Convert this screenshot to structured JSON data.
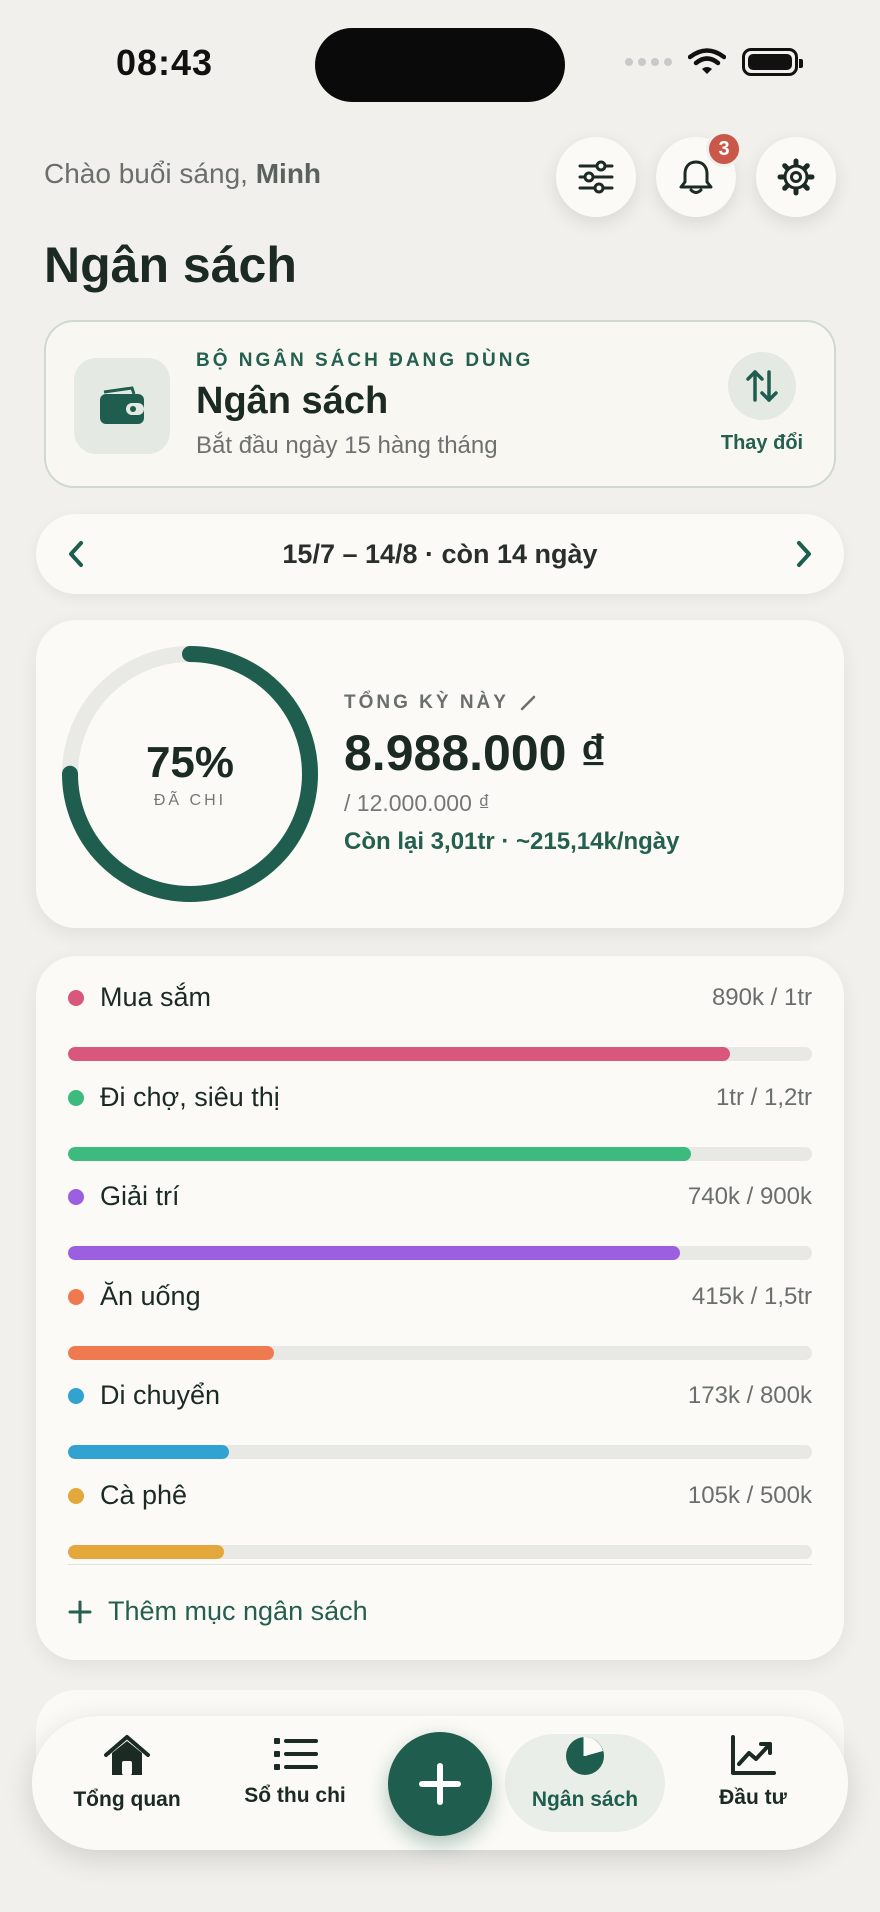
{
  "status_bar": {
    "time": "08:43"
  },
  "header": {
    "greeting_prefix": "Chào buổi sáng,",
    "greeting_name": "Minh",
    "title": "Ngân sách",
    "notification_count": "3"
  },
  "budget_set": {
    "label": "BỘ NGÂN SÁCH ĐANG DÙNG",
    "name": "Ngân sách",
    "subtitle": "Bắt đầu ngày 15 hàng tháng",
    "change_label": "Thay đổi"
  },
  "period": {
    "text": "15/7 – 14/8 · còn 14 ngày"
  },
  "summary": {
    "percent": "75%",
    "percent_label": "ĐÃ CHI",
    "spent_fraction": 0.75,
    "label": "TỔNG KỲ NÀY",
    "value": "8.988.000 ₫",
    "total": "/ 12.000.000 ₫",
    "remaining": "Còn lại 3,01tr · ~215,14k/ngày"
  },
  "categories": [
    {
      "name": "Mua sắm",
      "amount": "890k / 1tr",
      "progress": 0.89,
      "color": "#d9577b"
    },
    {
      "name": "Đi chợ, siêu thị",
      "amount": "1tr / 1,2tr",
      "progress": 0.837,
      "color": "#3dba7e"
    },
    {
      "name": "Giải trí",
      "amount": "740k / 900k",
      "progress": 0.822,
      "color": "#9b5fe0"
    },
    {
      "name": "Ăn uống",
      "amount": "415k / 1,5tr",
      "progress": 0.277,
      "color": "#f07a4f"
    },
    {
      "name": "Di chuyển",
      "amount": "173k / 800k",
      "progress": 0.216,
      "color": "#32a3d0"
    },
    {
      "name": "Cà phê",
      "amount": "105k / 500k",
      "progress": 0.21,
      "color": "#e3a73c"
    }
  ],
  "add_category_label": "Thêm mục ngân sách",
  "tabbar": {
    "items": [
      {
        "label": "Tổng quan",
        "icon": "home-icon"
      },
      {
        "label": "Sổ thu chi",
        "icon": "list-icon"
      },
      {
        "label": "Ngân sách",
        "icon": "pie-chart-icon",
        "active": true
      },
      {
        "label": "Đầu tư",
        "icon": "chart-line-icon"
      }
    ],
    "fab_icon": "plus-icon"
  },
  "colors": {
    "accent": "#1f5e4e",
    "background": "#f1f0ec",
    "card": "#fbfaf6"
  }
}
